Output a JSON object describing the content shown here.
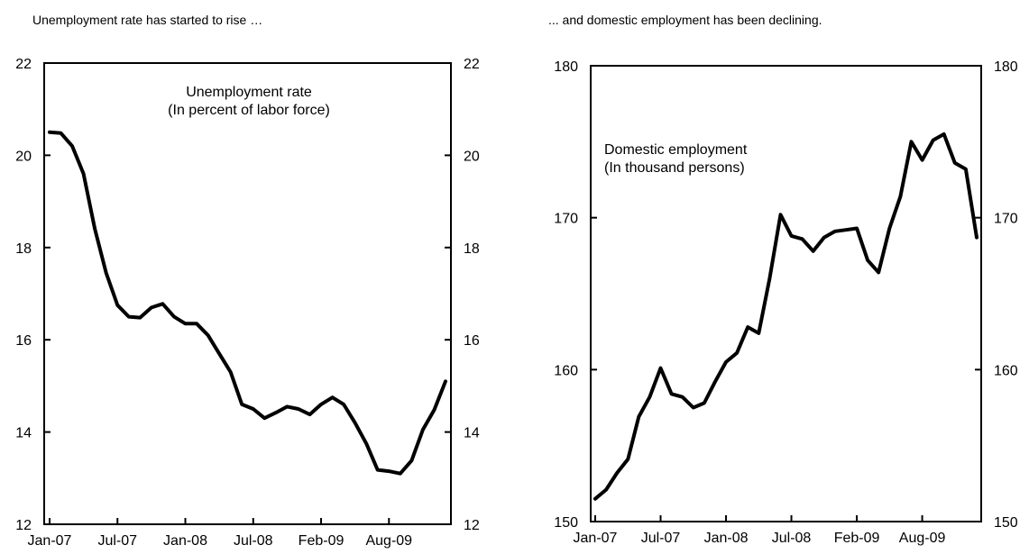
{
  "headers": {
    "left": "Unemployment rate has started to rise …",
    "right": "... and domestic employment has been declining."
  },
  "chart_data": [
    {
      "type": "line",
      "title": "",
      "annotation": [
        "Unemployment rate",
        "(In percent of labor force)"
      ],
      "xlabel": "",
      "ylabel": "",
      "ylim": [
        12,
        22
      ],
      "yticks": [
        12,
        14,
        16,
        18,
        20,
        22
      ],
      "xticks": [
        "Jan-07",
        "Jul-07",
        "Jan-08",
        "Jul-08",
        "Feb-09",
        "Aug-09"
      ],
      "xtick_index": [
        0,
        6,
        12,
        18,
        24,
        30
      ],
      "dual_axis": true,
      "grid": false,
      "legend": "none",
      "series": [
        {
          "color": "#000000",
          "values": [
            20.5,
            20.48,
            20.2,
            19.6,
            18.4,
            17.45,
            16.75,
            16.5,
            16.48,
            16.7,
            16.78,
            16.5,
            16.35,
            16.35,
            16.1,
            15.7,
            15.3,
            14.6,
            14.5,
            14.3,
            14.42,
            14.55,
            14.5,
            14.38,
            14.6,
            14.75,
            14.6,
            14.2,
            13.75,
            13.18,
            13.15,
            13.1,
            13.38,
            14.05,
            14.48,
            15.1
          ]
        }
      ]
    },
    {
      "type": "line",
      "title": "",
      "annotation": [
        "Domestic employment",
        "(In thousand persons)"
      ],
      "xlabel": "",
      "ylabel": "",
      "ylim": [
        150,
        180
      ],
      "yticks": [
        150,
        160,
        170,
        180
      ],
      "xticks": [
        "Jan-07",
        "Jul-07",
        "Jan-08",
        "Jul-08",
        "Feb-09",
        "Aug-09"
      ],
      "xtick_index": [
        0,
        6,
        12,
        18,
        24,
        30
      ],
      "dual_axis": true,
      "grid": false,
      "legend": "none",
      "series": [
        {
          "color": "#000000",
          "values": [
            151.5,
            152.1,
            153.2,
            154.1,
            156.9,
            158.2,
            160.1,
            158.4,
            158.2,
            157.5,
            157.8,
            159.2,
            160.5,
            161.1,
            162.8,
            162.4,
            166.0,
            170.2,
            168.8,
            168.6,
            167.8,
            168.7,
            169.1,
            169.2,
            169.3,
            167.2,
            166.4,
            169.3,
            171.4,
            175.0,
            173.8,
            175.1,
            175.5,
            173.6,
            173.2,
            168.7
          ]
        }
      ]
    }
  ]
}
